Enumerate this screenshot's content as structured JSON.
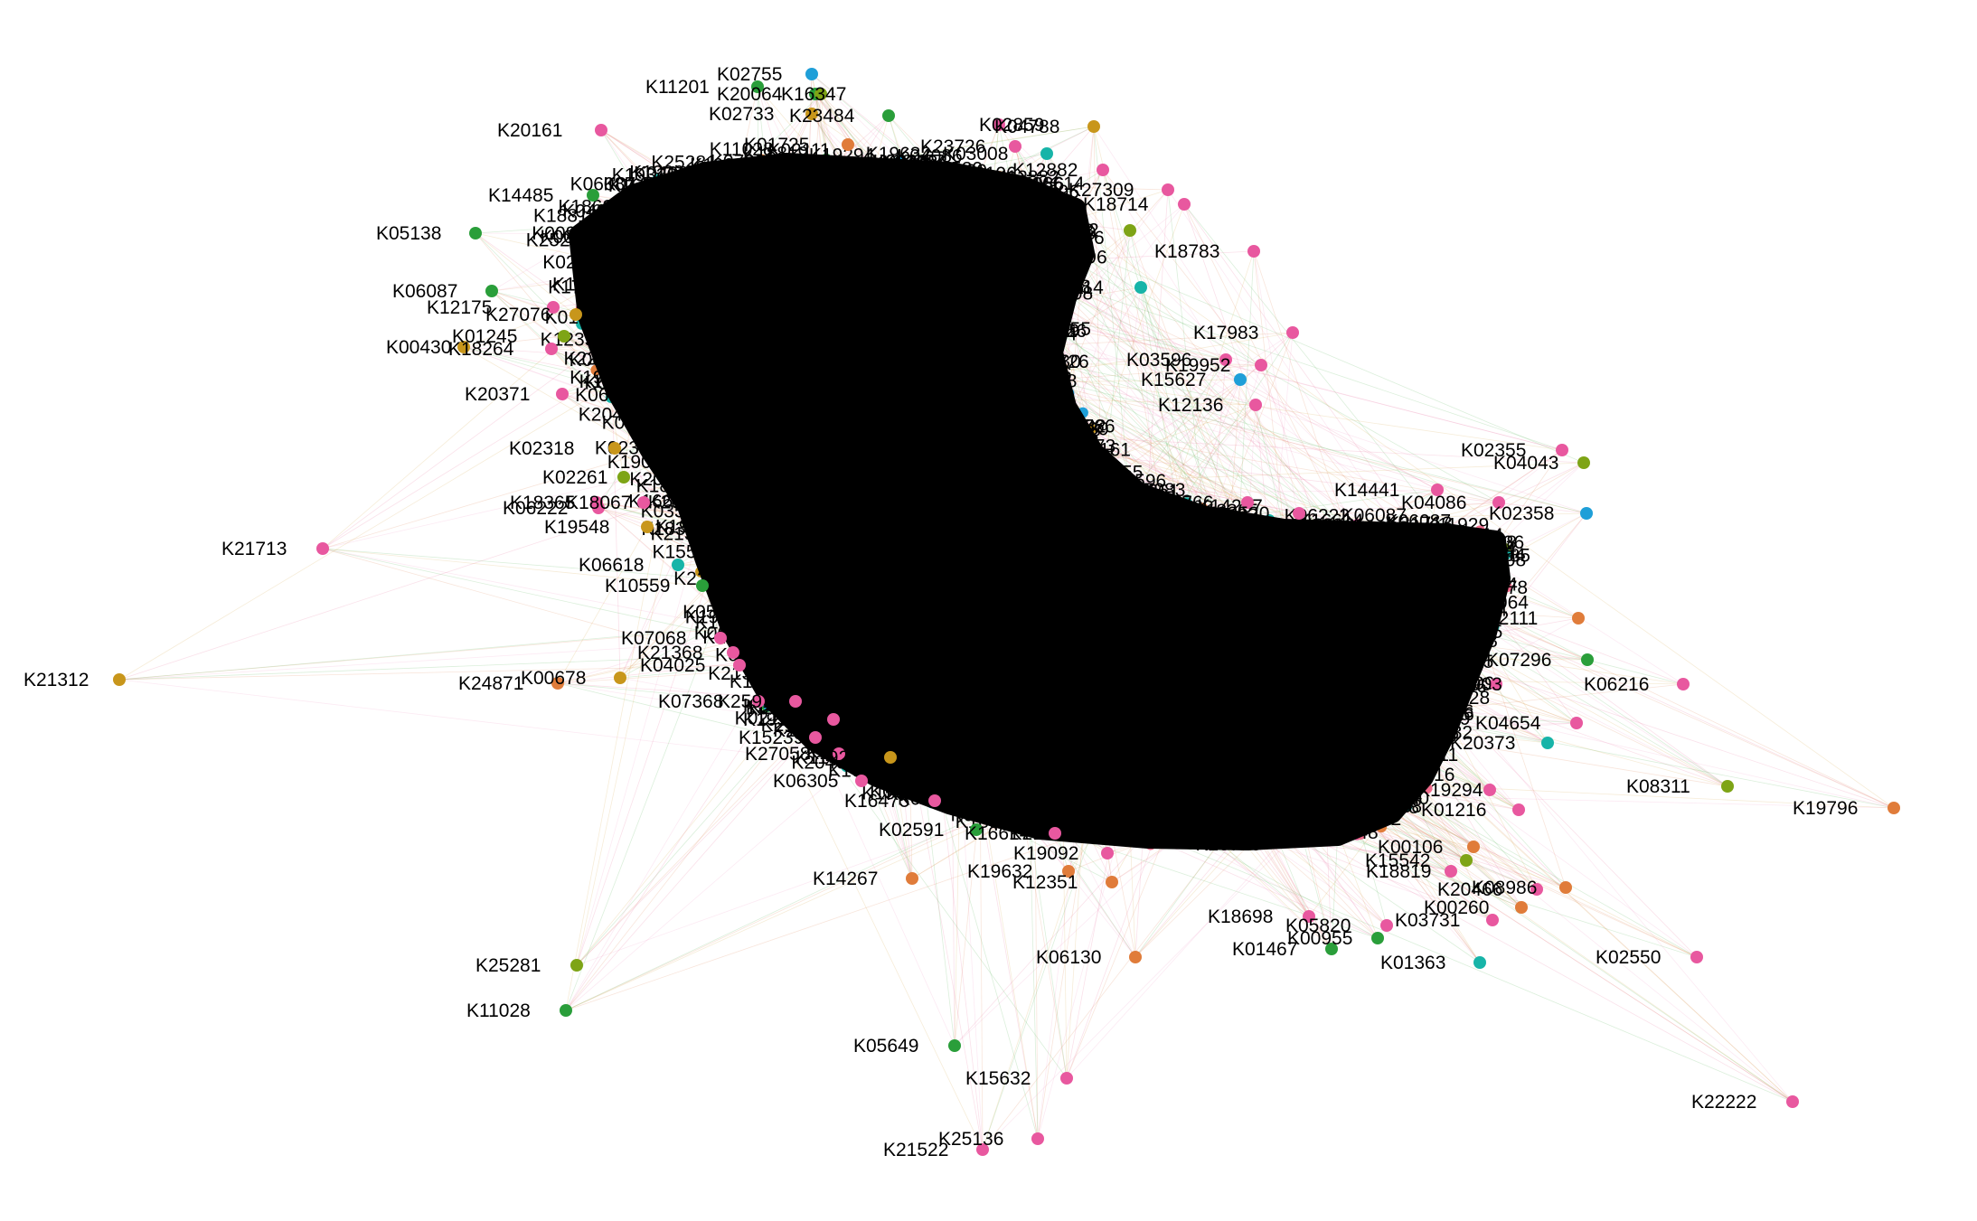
{
  "diagram": {
    "type": "network-graph",
    "node_palette": [
      "#e8589f",
      "#c8961b",
      "#2a9e3a",
      "#e07c3a",
      "#17b4a8",
      "#1f9fd8",
      "#7ea416",
      "#f06b8c"
    ],
    "edge_palette": [
      "#e8789f",
      "#d4a94e",
      "#5cb85c",
      "#e08a5a",
      "#f0a0c8"
    ],
    "node_color_count": 8,
    "nodes": [
      {
        "id": "K02755",
        "color": "#1f9fd8"
      },
      {
        "id": "K16347",
        "color": "#2a9e3a"
      },
      {
        "id": "K11201",
        "color": "#2a9e3a"
      },
      {
        "id": "K20064",
        "color": "#7ea416"
      },
      {
        "id": "K02733",
        "color": "#c8961b"
      },
      {
        "id": "K23484",
        "color": "#2a9e3a"
      },
      {
        "id": "K02859",
        "color": "#e8589f"
      },
      {
        "id": "K04788",
        "color": "#c8961b"
      },
      {
        "id": "K20161",
        "color": "#e8589f"
      },
      {
        "id": "K01725",
        "color": "#e07c3a"
      },
      {
        "id": "K23726",
        "color": "#e8589f"
      },
      {
        "id": "K03008",
        "color": "#17b4a8"
      },
      {
        "id": "K12882",
        "color": "#e8589f"
      },
      {
        "id": "K27309",
        "color": "#e8589f"
      },
      {
        "id": "K18714",
        "color": "#e8589f"
      },
      {
        "id": "K14485",
        "color": "#2a9e3a"
      },
      {
        "id": "K05138",
        "color": "#2a9e3a"
      },
      {
        "id": "K18868",
        "color": "#7ea416"
      },
      {
        "id": "K18783",
        "color": "#e8589f"
      },
      {
        "id": "K06087",
        "color": "#2a9e3a"
      },
      {
        "id": "K12175",
        "color": "#e8589f"
      },
      {
        "id": "K27076",
        "color": "#c8961b"
      },
      {
        "id": "K04114",
        "color": "#17b4a8"
      },
      {
        "id": "K17983",
        "color": "#e8589f"
      },
      {
        "id": "K00430",
        "color": "#c8961b"
      },
      {
        "id": "K01245",
        "color": "#7ea416"
      },
      {
        "id": "K18264",
        "color": "#e8589f"
      },
      {
        "id": "K03596",
        "color": "#e8589f"
      },
      {
        "id": "K19952",
        "color": "#e8589f"
      },
      {
        "id": "K15627",
        "color": "#1f9fd8"
      },
      {
        "id": "K20371",
        "color": "#e8589f"
      },
      {
        "id": "K12136",
        "color": "#e8589f"
      },
      {
        "id": "K02318",
        "color": "#c8961b"
      },
      {
        "id": "K02355",
        "color": "#e8589f"
      },
      {
        "id": "K04043",
        "color": "#7ea416"
      },
      {
        "id": "K02261",
        "color": "#7ea416"
      },
      {
        "id": "K14441",
        "color": "#e8589f"
      },
      {
        "id": "K04086",
        "color": "#e8589f"
      },
      {
        "id": "K18365",
        "color": "#e8589f"
      },
      {
        "id": "K18067",
        "color": "#e8589f"
      },
      {
        "id": "K06222",
        "color": "#e8589f"
      },
      {
        "id": "K07766",
        "color": "#e8589f"
      },
      {
        "id": "K03520",
        "color": "#e8589f"
      },
      {
        "id": "K02358",
        "color": "#1f9fd8"
      },
      {
        "id": "K19548",
        "color": "#c8961b"
      },
      {
        "id": "K21713",
        "color": "#e8589f"
      },
      {
        "id": "K06618",
        "color": "#17b4a8"
      },
      {
        "id": "K10559",
        "color": "#2a9e3a"
      },
      {
        "id": "K02111",
        "color": "#e07c3a"
      },
      {
        "id": "K07068",
        "color": "#e8589f"
      },
      {
        "id": "K21368",
        "color": "#e8589f"
      },
      {
        "id": "K07296",
        "color": "#2a9e3a"
      },
      {
        "id": "K21312",
        "color": "#c8961b"
      },
      {
        "id": "K24871",
        "color": "#e07c3a"
      },
      {
        "id": "K00678",
        "color": "#c8961b"
      },
      {
        "id": "K04025",
        "color": "#e8589f"
      },
      {
        "id": "K06216",
        "color": "#e8589f"
      },
      {
        "id": "K07368",
        "color": "#e8589f"
      },
      {
        "id": "K25918",
        "color": "#e8589f"
      },
      {
        "id": "K11903",
        "color": "#e8589f"
      },
      {
        "id": "K19330",
        "color": "#e8589f"
      },
      {
        "id": "K04654",
        "color": "#e8589f"
      },
      {
        "id": "K15239",
        "color": "#e8589f"
      },
      {
        "id": "K20373",
        "color": "#17b4a8"
      },
      {
        "id": "K27058",
        "color": "#e8589f"
      },
      {
        "id": "K11929",
        "color": "#c8961b"
      },
      {
        "id": "K06305",
        "color": "#e8589f"
      },
      {
        "id": "K08311",
        "color": "#7ea416"
      },
      {
        "id": "K19796",
        "color": "#e07c3a"
      },
      {
        "id": "K19294",
        "color": "#e8589f"
      },
      {
        "id": "K16475",
        "color": "#e8589f"
      },
      {
        "id": "K01216",
        "color": "#e8589f"
      },
      {
        "id": "K02591",
        "color": "#2a9e3a"
      },
      {
        "id": "K16614",
        "color": "#e8589f"
      },
      {
        "id": "K19092",
        "color": "#e8589f"
      },
      {
        "id": "K00106",
        "color": "#e07c3a"
      },
      {
        "id": "K15542",
        "color": "#7ea416"
      },
      {
        "id": "K18819",
        "color": "#e8589f"
      },
      {
        "id": "K14267",
        "color": "#e07c3a"
      },
      {
        "id": "K19632",
        "color": "#e07c3a"
      },
      {
        "id": "K12351",
        "color": "#e07c3a"
      },
      {
        "id": "K20466",
        "color": "#e8589f"
      },
      {
        "id": "K08986",
        "color": "#e07c3a"
      },
      {
        "id": "K00260",
        "color": "#e07c3a"
      },
      {
        "id": "K18698",
        "color": "#e8589f"
      },
      {
        "id": "K05820",
        "color": "#e8589f"
      },
      {
        "id": "K03731",
        "color": "#e8589f"
      },
      {
        "id": "K00955",
        "color": "#2a9e3a"
      },
      {
        "id": "K01467",
        "color": "#2a9e3a"
      },
      {
        "id": "K25281",
        "color": "#7ea416"
      },
      {
        "id": "K06130",
        "color": "#e07c3a"
      },
      {
        "id": "K01363",
        "color": "#17b4a8"
      },
      {
        "id": "K02550",
        "color": "#e8589f"
      },
      {
        "id": "K11028",
        "color": "#2a9e3a"
      },
      {
        "id": "K05649",
        "color": "#2a9e3a"
      },
      {
        "id": "K15632",
        "color": "#e8589f"
      },
      {
        "id": "K22222",
        "color": "#e8589f"
      },
      {
        "id": "K25136",
        "color": "#e8589f"
      },
      {
        "id": "K21522",
        "color": "#e8589f"
      }
    ]
  }
}
